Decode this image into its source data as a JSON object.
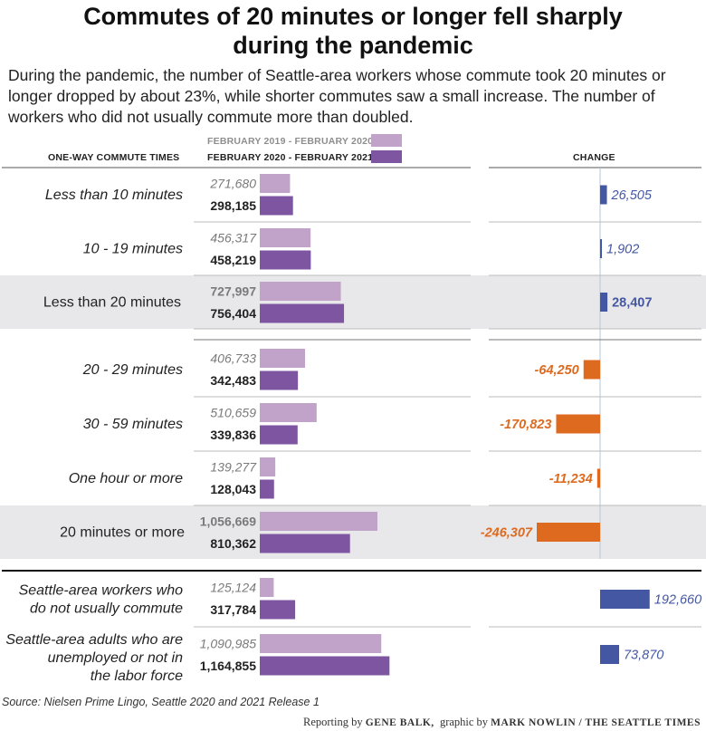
{
  "title_line1": "Commutes of 20 minutes or longer fell sharply",
  "title_line2": "during the pandemic",
  "subtitle": "During the pandemic, the number of Seattle-area workers whose commute took 20 minutes or longer dropped by about 23%, while shorter commutes saw a small increase. The number of workers who did not usually commute more than doubled.",
  "column_header_left": "ONE-WAY COMMUTE TIMES",
  "column_header_right": "CHANGE",
  "source": "Source: Nielsen Prime Lingo, Seattle 2020 and 2021 Release 1",
  "credit": {
    "prefix": "Reporting by",
    "reporter": "GENE BALK,",
    "middle": "graphic by",
    "artist": "MARK NOWLIN / THE SEATTLE TIMES"
  },
  "colors": {
    "period_2019": "#c1a3c9",
    "period_2020": "#7d55a0",
    "increase": "#4457a3",
    "decrease": "#de6a1f",
    "highlight_band": "#e8e8ea",
    "rule": "#bbbbbb"
  },
  "chart_data": {
    "type": "bar",
    "series": [
      {
        "name": "FEBRUARY 2019 - FEBRUARY 2020",
        "values": [
          271680,
          456317,
          727997,
          406733,
          510659,
          139277,
          1056669,
          125124,
          1090985
        ]
      },
      {
        "name": "FEBRUARY 2020 - FEBRUARY 2021",
        "values": [
          298185,
          458219,
          756404,
          342483,
          339836,
          128043,
          810362,
          317784,
          1164855
        ]
      }
    ],
    "categories": [
      "Less than 10 minutes",
      "10 - 19 minutes",
      "Less than 20 minutes",
      "20 - 29 minutes",
      "30 - 59 minutes",
      "One hour or more",
      "20 minutes or more",
      "Seattle-area workers who do not usually commute",
      "Seattle-area adults who are unemployed or not in the labor force"
    ],
    "category_lines": [
      [
        "Less than 10 minutes"
      ],
      [
        "10 - 19 minutes"
      ],
      [
        "Less than 20 minutes"
      ],
      [
        "20 - 29 minutes"
      ],
      [
        "30 - 59 minutes"
      ],
      [
        "One hour or more"
      ],
      [
        "20 minutes or more"
      ],
      [
        "Seattle-area workers who",
        "do not usually commute"
      ],
      [
        "Seattle-area adults who are",
        "unemployed or not in",
        "the labor force"
      ]
    ],
    "value_labels_2019": [
      "271,680",
      "456,317",
      "727,997",
      "406,733",
      "510,659",
      "139,277",
      "1,056,669",
      "125,124",
      "1,090,985"
    ],
    "value_labels_2020": [
      "298,185",
      "458,219",
      "756,404",
      "342,483",
      "339,836",
      "128,043",
      "810,362",
      "317,784",
      "1,164,855"
    ],
    "change": [
      26505,
      1902,
      28407,
      -64250,
      -170823,
      -11234,
      -246307,
      192660,
      73870
    ],
    "change_labels": [
      "26,505",
      "1,902",
      "28,407",
      "-64,250",
      "-170,823",
      "-11,234",
      "-246,307",
      "192,660",
      "73,870"
    ],
    "row_styles": [
      "italic",
      "italic",
      "total",
      "italic",
      "italic",
      "italic",
      "total",
      "group",
      "group"
    ],
    "highlighted_rows": [
      2,
      6
    ],
    "grid": false,
    "legend_position": "top"
  }
}
